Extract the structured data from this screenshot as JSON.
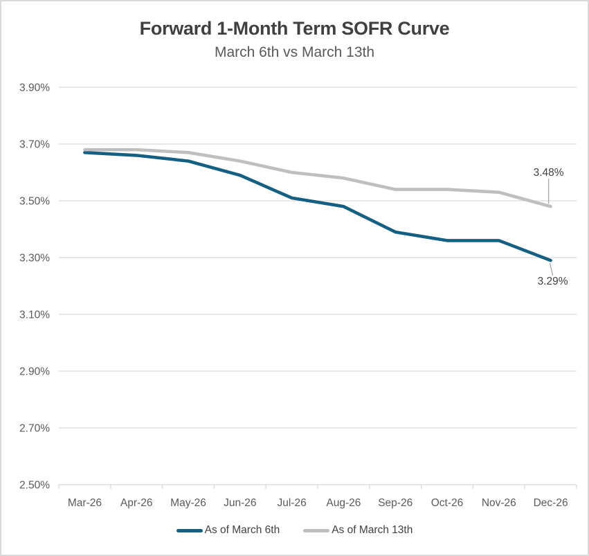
{
  "header": {
    "title": "Forward 1-Month Term SOFR Curve",
    "subtitle": "March 6th vs March 13th"
  },
  "chart_data": {
    "type": "line",
    "categories": [
      "Mar-26",
      "Apr-26",
      "May-26",
      "Jun-26",
      "Jul-26",
      "Aug-26",
      "Sep-26",
      "Oct-26",
      "Nov-26",
      "Dec-26"
    ],
    "series": [
      {
        "name": "As of March 6th",
        "color": "#156082",
        "values": [
          3.67,
          3.66,
          3.64,
          3.59,
          3.51,
          3.48,
          3.39,
          3.36,
          3.36,
          3.29
        ]
      },
      {
        "name": "As of March 13th",
        "color": "#BFBFBF",
        "values": [
          3.68,
          3.68,
          3.67,
          3.64,
          3.6,
          3.58,
          3.54,
          3.54,
          3.53,
          3.48
        ]
      }
    ],
    "ylim": [
      2.5,
      3.9
    ],
    "y_ticks": [
      {
        "value": 3.9,
        "label": "3.90%"
      },
      {
        "value": 3.7,
        "label": "3.70%"
      },
      {
        "value": 3.5,
        "label": "3.50%"
      },
      {
        "value": 3.3,
        "label": "3.30%"
      },
      {
        "value": 3.1,
        "label": "3.10%"
      },
      {
        "value": 2.9,
        "label": "2.90%"
      },
      {
        "value": 2.7,
        "label": "2.70%"
      },
      {
        "value": 2.5,
        "label": "2.50%"
      }
    ],
    "annotations": [
      {
        "series": 1,
        "point": 9,
        "text": "3.48%",
        "position": "above"
      },
      {
        "series": 0,
        "point": 9,
        "text": "3.29%",
        "position": "below"
      }
    ],
    "grid": "horizontal",
    "markers": false,
    "legend_position": "bottom"
  },
  "colors": {
    "title_text": "#404040",
    "subtitle_text": "#595959",
    "axis_text": "#595959",
    "gridline": "#D9D9D9",
    "axis_tick": "#D9D9D9",
    "leader_line": "#A6A6A6",
    "annotation_text": "#404040",
    "border": "#D9D9D9",
    "background": "#FFFFFF"
  }
}
